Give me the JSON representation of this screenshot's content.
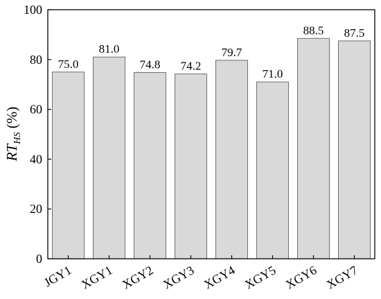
{
  "chart_data": {
    "type": "bar",
    "title": "",
    "xlabel": "",
    "ylabel": {
      "main": "RT",
      "subscript": "HS",
      "unit": " (%)"
    },
    "ylim": [
      0,
      100
    ],
    "yticks": [
      0,
      20,
      40,
      60,
      80,
      100
    ],
    "categories": [
      "JGY1",
      "XGY1",
      "XGY2",
      "XGY3",
      "XGY4",
      "XGY5",
      "XGY6",
      "XGY7"
    ],
    "values": [
      75.0,
      81.0,
      74.8,
      74.2,
      79.7,
      71.0,
      88.5,
      87.5
    ],
    "data_labels": [
      "75.0",
      "81.0",
      "74.8",
      "74.2",
      "79.7",
      "71.0",
      "88.5",
      "87.5"
    ],
    "grid": false,
    "legend": "none",
    "bar_fill": "#d9d9d9",
    "bar_stroke": "#6e6e6e",
    "axis_color": "#000000"
  }
}
